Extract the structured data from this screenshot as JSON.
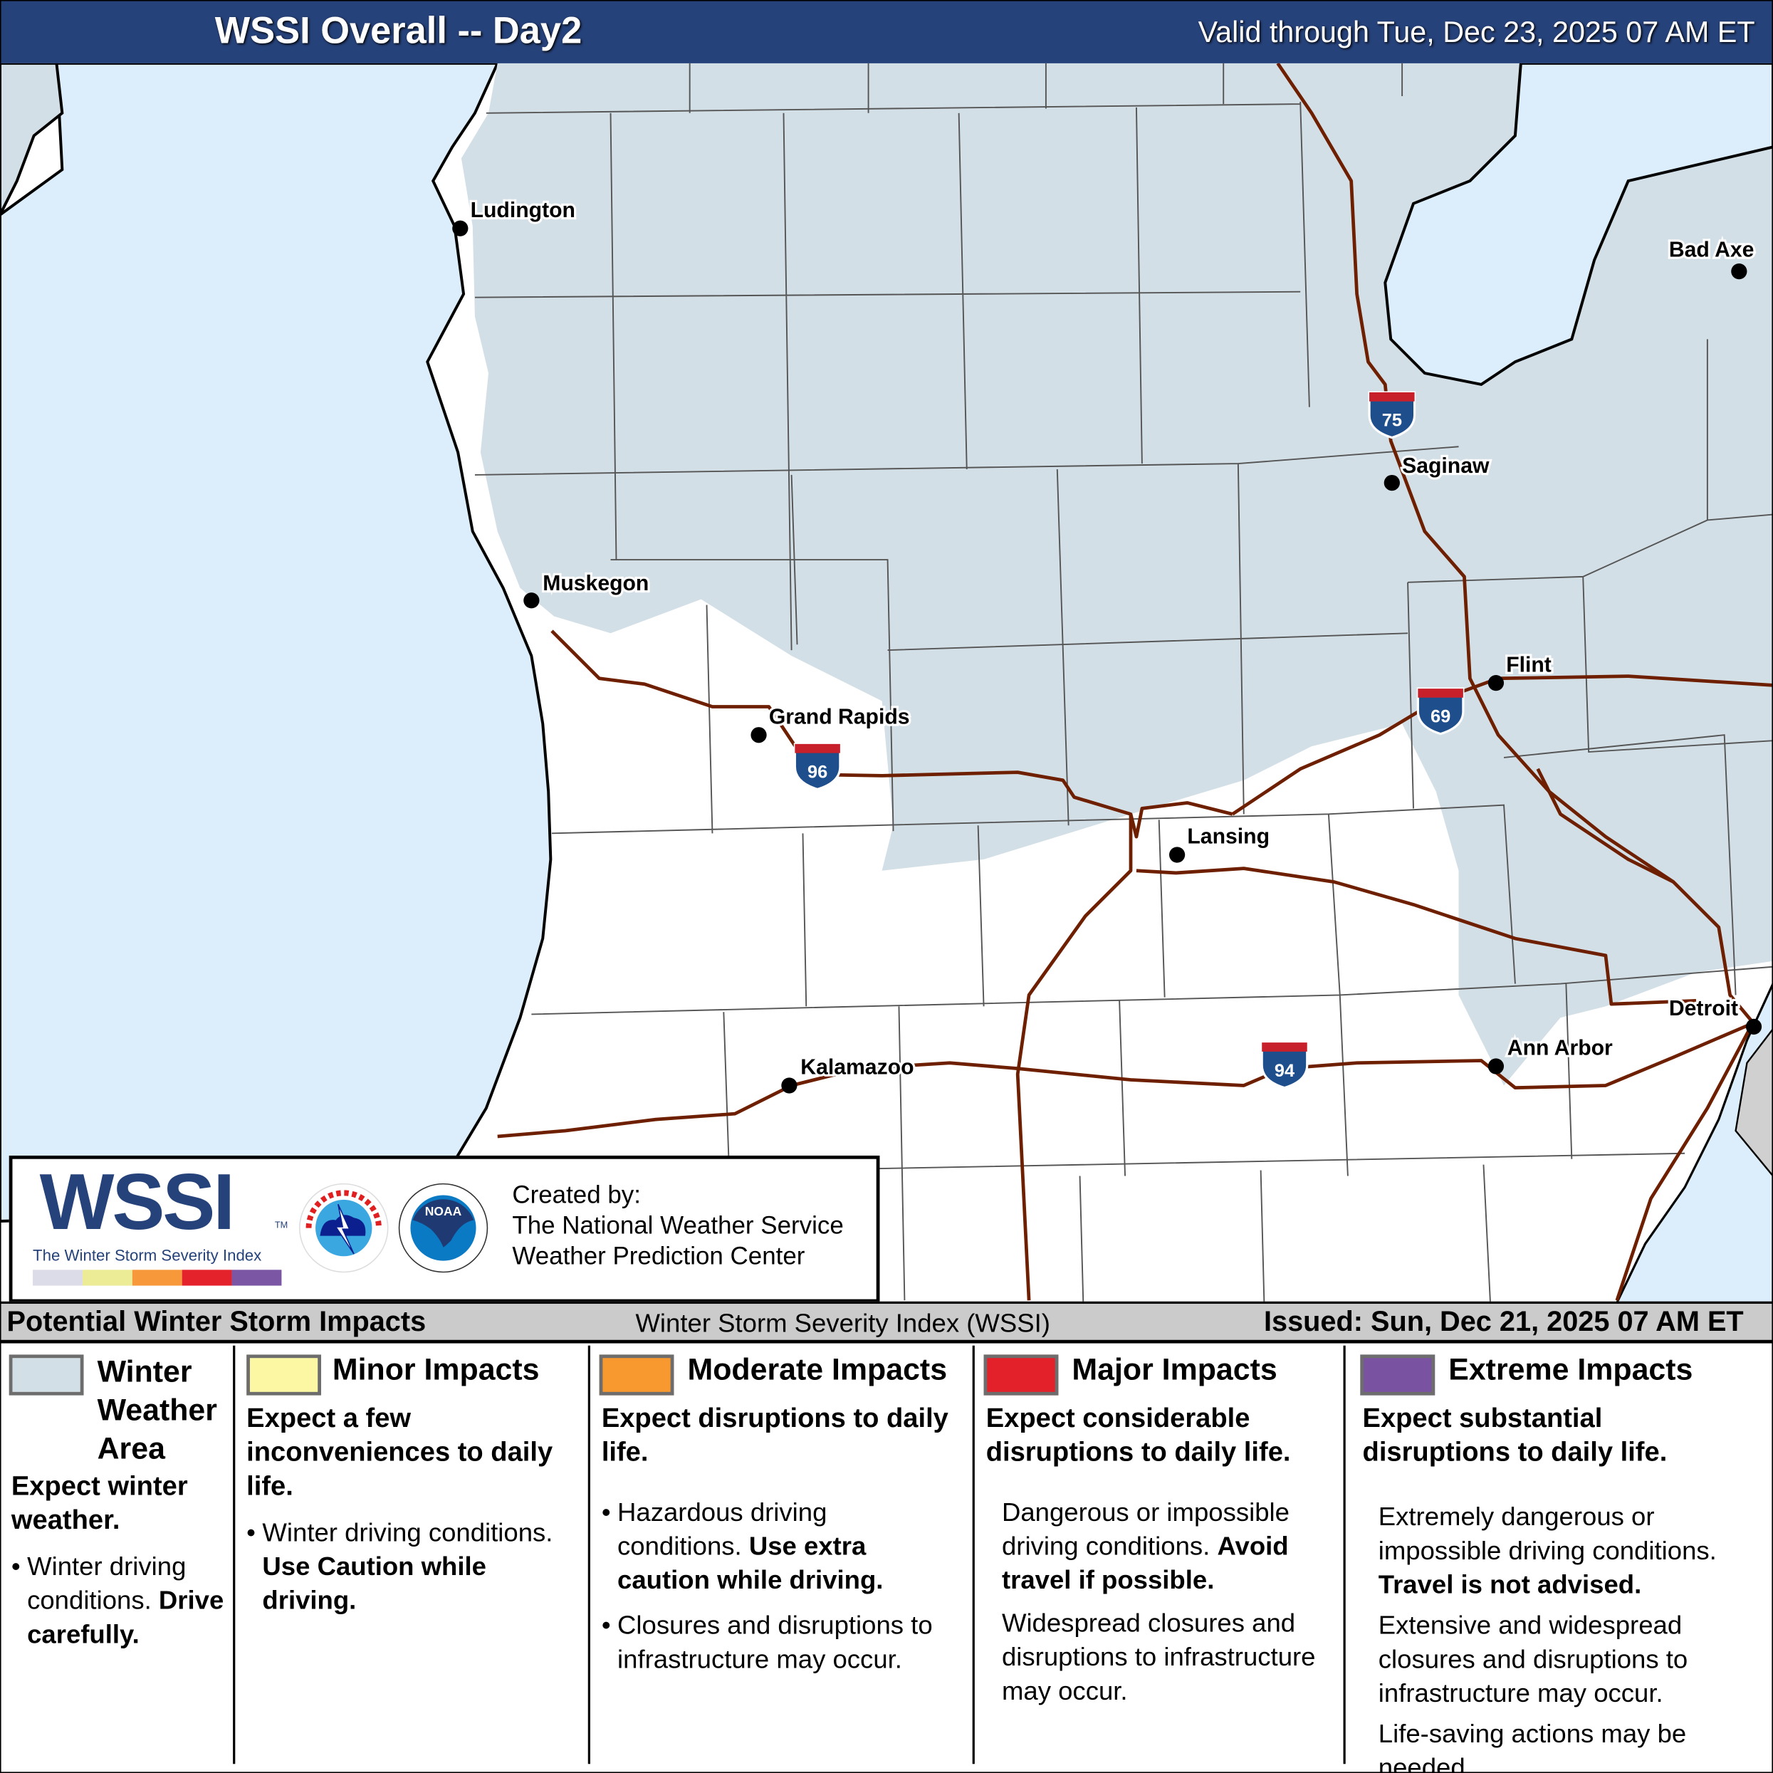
{
  "header": {
    "title": "WSSI Overall -- Day2",
    "valid": "Valid through Tue, Dec 23, 2025 07 AM ET",
    "background_color": "#26427a"
  },
  "map": {
    "colors": {
      "water": "#dcedfb",
      "land": "#ffffff",
      "winter_weather_area": "#d3dfe6",
      "roads": "#6e1f00",
      "county_lines": "#555555",
      "canada": "#d0d0d0"
    },
    "cities": [
      {
        "name": "Ludington"
      },
      {
        "name": "Bad Axe"
      },
      {
        "name": "Saginaw"
      },
      {
        "name": "Muskegon"
      },
      {
        "name": "Flint"
      },
      {
        "name": "Grand Rapids"
      },
      {
        "name": "Lansing"
      },
      {
        "name": "Detroit"
      },
      {
        "name": "Ann Arbor"
      },
      {
        "name": "Kalamazoo"
      }
    ],
    "interstates": [
      "75",
      "96",
      "69",
      "94"
    ]
  },
  "logo_box": {
    "wssi": "WSSI",
    "tm": "TM",
    "wssi_subtitle": "The Winter Storm Severity Index",
    "scale_colors": [
      "#dcdce8",
      "#ecec96",
      "#f7993a",
      "#e3222c",
      "#7b56a5"
    ],
    "nws_logo_text": "NATIONAL WEATHER SERVICE",
    "noaa_logo_text": "NOAA",
    "created_by": "Created by:",
    "org1": "The National Weather Service",
    "org2": "Weather Prediction Center"
  },
  "legend": {
    "title": "Potential Winter Storm Impacts",
    "index_name": "Winter Storm Severity Index (WSSI)",
    "issued": "Issued: Sun, Dec 21, 2025 07 AM ET",
    "categories": [
      {
        "label_lines": [
          "Winter",
          "Weather",
          "Area"
        ],
        "color": "#d3dfe6",
        "headline": "Expect winter weather.",
        "bullet": "Winter driving conditions.",
        "bullet_bold": "Drive carefully."
      },
      {
        "label": "Minor Impacts",
        "color": "#fbf7a3",
        "headline": "Expect a few inconveniences to daily life.",
        "bullet": "Winter driving conditions.",
        "bullet_bold": "Use Caution while driving."
      },
      {
        "label": "Moderate Impacts",
        "color": "#f7992f",
        "headline": "Expect disruptions to daily life.",
        "bullet": "Hazardous driving conditions.",
        "bullet_bold": "Use extra caution while driving.",
        "bullet2": "Closures and disruptions to infrastructure may occur."
      },
      {
        "label": "Major Impacts",
        "color": "#e3212b",
        "headline": "Expect considerable disruptions to daily life.",
        "text1": "Dangerous or impossible driving conditions.",
        "text1_bold": "Avoid travel if possible.",
        "text2": "Widespread closures and disruptions to infrastructure may occur."
      },
      {
        "label": "Extreme Impacts",
        "color": "#7a52a2",
        "headline": "Expect substantial disruptions to daily life.",
        "text1": "Extremely dangerous or impossible driving conditions.",
        "text1_bold": "Travel is not advised.",
        "text2": "Extensive and widespread closures and disruptions to infrastructure may occur.",
        "text3": "Life-saving actions may be needed."
      }
    ]
  }
}
